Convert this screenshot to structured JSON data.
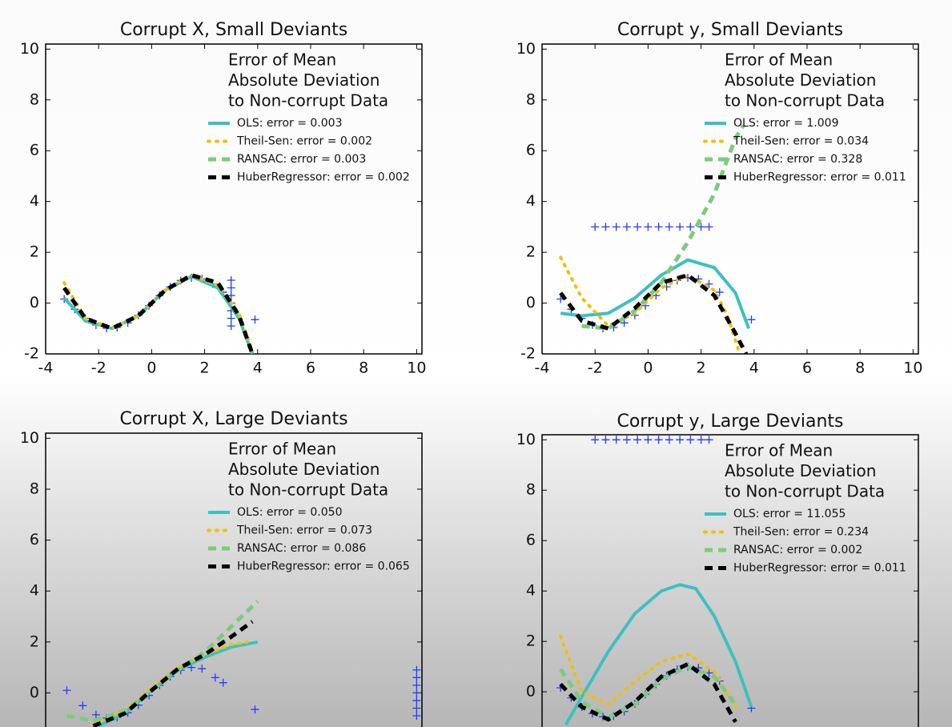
{
  "chart_data": [
    {
      "type": "line",
      "title": "Corrupt X, Small Deviants",
      "legend_title": [
        "Error of Mean",
        "Absolute Deviation",
        "to Non-corrupt Data"
      ],
      "xlim": [
        -4,
        10.2
      ],
      "ylim": [
        -2,
        10.2
      ],
      "xticks": [
        -4,
        -2,
        0,
        2,
        4,
        6,
        8,
        10
      ],
      "yticks": [
        -2,
        0,
        2,
        4,
        6,
        8,
        10
      ],
      "points": {
        "color": "#1f3cff",
        "x": [
          -3.3,
          -2.9,
          -2.5,
          -2.1,
          -1.7,
          -1.3,
          -0.9,
          -0.5,
          -0.1,
          0.3,
          0.7,
          1.1,
          1.5,
          1.9,
          2.3,
          2.7,
          3,
          3,
          3,
          3,
          3,
          3,
          3,
          3.9
        ],
        "values": [
          0.16,
          -0.24,
          -0.6,
          -0.86,
          -0.99,
          -0.96,
          -0.78,
          -0.48,
          -0.1,
          0.3,
          0.64,
          0.89,
          1.0,
          0.95,
          0.75,
          0.43,
          -0.9,
          -0.6,
          -0.3,
          0,
          0.3,
          0.6,
          0.9,
          -0.65
        ]
      },
      "series": [
        {
          "name": "OLS: error = 0.003",
          "color": "#3cc0c0",
          "style": "solid",
          "x": [
            -3.3,
            -2.5,
            -1.5,
            -0.5,
            0.5,
            1.5,
            2.5,
            3.3,
            3.8
          ],
          "values": [
            0.2,
            -0.7,
            -1.0,
            -0.5,
            0.5,
            1.05,
            0.6,
            -0.6,
            -2.0
          ]
        },
        {
          "name": "Theil-Sen: error = 0.002",
          "color": "#f0c000",
          "style": "dotted",
          "x": [
            -3.3,
            -2.5,
            -1.5,
            -0.5,
            0.5,
            1.5,
            2.5,
            3.3,
            3.8
          ],
          "values": [
            0.8,
            -0.6,
            -1.0,
            -0.5,
            0.5,
            1.1,
            0.7,
            -0.4,
            -1.9
          ]
        },
        {
          "name": "RANSAC: error = 0.003",
          "color": "#7ccb7c",
          "style": "dashed",
          "x": [
            -3.3,
            -2.5,
            -1.5,
            -0.5,
            0.5,
            1.5,
            2.5,
            3.3,
            3.8
          ],
          "values": [
            0.6,
            -0.6,
            -1.0,
            -0.5,
            0.5,
            1.1,
            0.7,
            -0.5,
            -2.0
          ]
        },
        {
          "name": "HuberRegressor: error = 0.002",
          "color": "#000000",
          "style": "dashed",
          "x": [
            -3.3,
            -2.5,
            -1.5,
            -0.5,
            0.5,
            1.5,
            2.5,
            3.3,
            3.8
          ],
          "values": [
            0.6,
            -0.6,
            -1.0,
            -0.5,
            0.5,
            1.1,
            0.8,
            -0.5,
            -2.0
          ]
        }
      ]
    },
    {
      "type": "line",
      "title": "Corrupt y, Small Deviants",
      "legend_title": [
        "Error of Mean",
        "Absolute Deviation",
        "to Non-corrupt Data"
      ],
      "xlim": [
        -4,
        10.2
      ],
      "ylim": [
        -2,
        10.2
      ],
      "xticks": [
        -4,
        -2,
        0,
        2,
        4,
        6,
        8,
        10
      ],
      "yticks": [
        -2,
        0,
        2,
        4,
        6,
        8,
        10
      ],
      "points": {
        "color": "#1f3cff",
        "x": [
          -3.3,
          -2.9,
          -2.5,
          -2.1,
          -1.7,
          -1.3,
          -0.9,
          -0.5,
          -0.1,
          0.3,
          0.7,
          1.1,
          1.5,
          1.9,
          2.3,
          2.7,
          -2,
          -1.6,
          -1.2,
          -0.8,
          -0.4,
          0,
          0.4,
          0.8,
          1.2,
          1.6,
          2.0,
          2.3,
          3.9
        ],
        "values": [
          0.16,
          -0.24,
          -0.6,
          -0.86,
          -0.99,
          -0.96,
          -0.78,
          -0.48,
          -0.1,
          0.3,
          0.64,
          0.89,
          1.0,
          0.95,
          0.75,
          0.43,
          3,
          3,
          3,
          3,
          3,
          3,
          3,
          3,
          3,
          3,
          3,
          3,
          -0.65
        ]
      },
      "series": [
        {
          "name": "OLS: error = 1.009",
          "color": "#3cc0c0",
          "style": "solid",
          "x": [
            -3.3,
            -2.5,
            -1.5,
            -0.5,
            0.5,
            1.5,
            2.5,
            3.3,
            3.8
          ],
          "values": [
            -0.4,
            -0.5,
            -0.4,
            0.2,
            1.1,
            1.7,
            1.4,
            0.4,
            -1.0
          ]
        },
        {
          "name": "Theil-Sen: error = 0.034",
          "color": "#f0c000",
          "style": "dotted",
          "x": [
            -3.3,
            -2.5,
            -1.5,
            -0.5,
            0.5,
            1.5,
            2.5,
            3.0,
            3.4
          ],
          "values": [
            1.8,
            0.2,
            -0.9,
            -0.4,
            0.6,
            1.1,
            0.5,
            -0.5,
            -1.8
          ]
        },
        {
          "name": "RANSAC: error = 0.328",
          "color": "#7ccb7c",
          "style": "dashed",
          "x": [
            -2.5,
            -1.5,
            -0.5,
            0.5,
            1.5,
            2.5,
            3.3,
            3.6
          ],
          "values": [
            -0.9,
            -1.0,
            -0.3,
            0.8,
            2.4,
            4.3,
            6.5,
            7.0
          ]
        },
        {
          "name": "HuberRegressor: error = 0.011",
          "color": "#000000",
          "style": "dashed",
          "x": [
            -3.3,
            -2.5,
            -1.5,
            -0.5,
            0.5,
            1.5,
            2.5,
            3.3,
            3.7
          ],
          "values": [
            0.4,
            -0.7,
            -1.0,
            -0.2,
            0.8,
            1.1,
            0.3,
            -1.2,
            -2.0
          ]
        }
      ]
    },
    {
      "type": "line",
      "title": "Corrupt X, Large Deviants",
      "legend_title": [
        "Error of Mean",
        "Absolute Deviation",
        "to Non-corrupt Data"
      ],
      "xlim": [
        -4,
        10.2
      ],
      "ylim": [
        -2,
        10.2
      ],
      "yticks": [
        0,
        2,
        4,
        6,
        8,
        10
      ],
      "points": {
        "color": "#1f3cff",
        "x": [
          -2.1,
          -1.7,
          -1.3,
          -0.9,
          -0.5,
          -0.1,
          0.3,
          0.7,
          1.1,
          1.5,
          1.9,
          2.4,
          2.7,
          -3.2,
          -2.6,
          3.9,
          10,
          10,
          10,
          10,
          10,
          10,
          10
        ],
        "values": [
          -0.86,
          -0.99,
          -0.96,
          -0.78,
          -0.48,
          -0.1,
          0.3,
          0.64,
          0.89,
          1.0,
          0.95,
          0.6,
          0.4,
          0.1,
          -0.5,
          -0.65,
          -0.9,
          -0.6,
          -0.3,
          0,
          0.3,
          0.6,
          0.9
        ]
      },
      "series": [
        {
          "name": "OLS: error = 0.050",
          "color": "#3cc0c0",
          "style": "solid",
          "x": [
            -2.2,
            -1,
            0,
            1,
            2,
            3,
            4
          ],
          "values": [
            -1.4,
            -0.8,
            0.1,
            0.9,
            1.4,
            1.8,
            2.0
          ]
        },
        {
          "name": "Theil-Sen: error = 0.073",
          "color": "#f0c000",
          "style": "dotted",
          "x": [
            -2.2,
            -1,
            0,
            1,
            2,
            3,
            3.6
          ],
          "values": [
            -1.2,
            -0.7,
            0.2,
            1.0,
            1.5,
            1.9,
            2.0
          ]
        },
        {
          "name": "RANSAC: error = 0.086",
          "color": "#7ccb7c",
          "style": "dashed",
          "x": [
            -3.2,
            -2.2,
            -1,
            0,
            1,
            2,
            3,
            4
          ],
          "values": [
            -0.9,
            -1.1,
            -0.7,
            0.1,
            0.9,
            1.6,
            2.6,
            3.6
          ]
        },
        {
          "name": "HuberRegressor: error = 0.065",
          "color": "#000000",
          "style": "dashed",
          "x": [
            -2.2,
            -1,
            0,
            1,
            2,
            3,
            3.8
          ],
          "values": [
            -1.3,
            -0.8,
            0.1,
            0.95,
            1.5,
            2.2,
            2.8
          ]
        }
      ]
    },
    {
      "type": "line",
      "title": "Corrupt y, Large Deviants",
      "legend_title": [
        "Error of Mean",
        "Absolute Deviation",
        "to Non-corrupt Data"
      ],
      "xlim": [
        -4,
        10.2
      ],
      "ylim": [
        -2,
        10.2
      ],
      "yticks": [
        0,
        2,
        4,
        6,
        8,
        10
      ],
      "points": {
        "color": "#1f3cff",
        "x": [
          -3.3,
          -2.9,
          -2.5,
          -2.1,
          -1.7,
          -1.3,
          -0.9,
          -0.5,
          -0.1,
          0.3,
          0.7,
          1.1,
          1.5,
          1.9,
          2.3,
          2.7,
          -2,
          -1.6,
          -1.2,
          -0.8,
          -0.4,
          0,
          0.4,
          0.8,
          1.2,
          1.6,
          2.0,
          2.3,
          3.9
        ],
        "values": [
          0.16,
          -0.24,
          -0.6,
          -0.86,
          -0.99,
          -0.96,
          -0.78,
          -0.48,
          -0.1,
          0.3,
          0.64,
          0.89,
          1.0,
          0.95,
          0.75,
          0.43,
          10,
          10,
          10,
          10,
          10,
          10,
          10,
          10,
          10,
          10,
          10,
          10,
          -0.65
        ]
      },
      "series": [
        {
          "name": "OLS: error = 11.055",
          "color": "#3cc0c0",
          "style": "solid",
          "x": [
            -3.1,
            -2.5,
            -1.5,
            -0.5,
            0.5,
            1.2,
            1.8,
            2.5,
            3.3,
            3.9
          ],
          "values": [
            -1.3,
            -0.2,
            1.6,
            3.1,
            4.0,
            4.25,
            4.1,
            3.0,
            1.2,
            -0.6
          ]
        },
        {
          "name": "Theil-Sen: error = 0.234",
          "color": "#f0c000",
          "style": "dotted",
          "x": [
            -3.3,
            -2.5,
            -1.5,
            -0.5,
            0.5,
            1.5,
            2.5,
            3.3
          ],
          "values": [
            2.2,
            0.0,
            -0.5,
            0.4,
            1.2,
            1.5,
            0.8,
            -0.6
          ]
        },
        {
          "name": "RANSAC: error = 0.002",
          "color": "#7ccb7c",
          "style": "dashed",
          "x": [
            -3.3,
            -2.5,
            -1.5,
            -0.5,
            0.5,
            1.5,
            2.5,
            3.3
          ],
          "values": [
            0.9,
            -0.4,
            -1.0,
            -0.5,
            0.5,
            1.0,
            0.6,
            -0.5
          ]
        },
        {
          "name": "HuberRegressor: error = 0.011",
          "color": "#000000",
          "style": "dashed",
          "x": [
            -3.3,
            -2.5,
            -1.5,
            -0.5,
            0.5,
            1.5,
            2.5,
            3.3
          ],
          "values": [
            0.3,
            -0.6,
            -1.1,
            -0.4,
            0.6,
            1.1,
            0.3,
            -1.2
          ]
        }
      ]
    }
  ]
}
